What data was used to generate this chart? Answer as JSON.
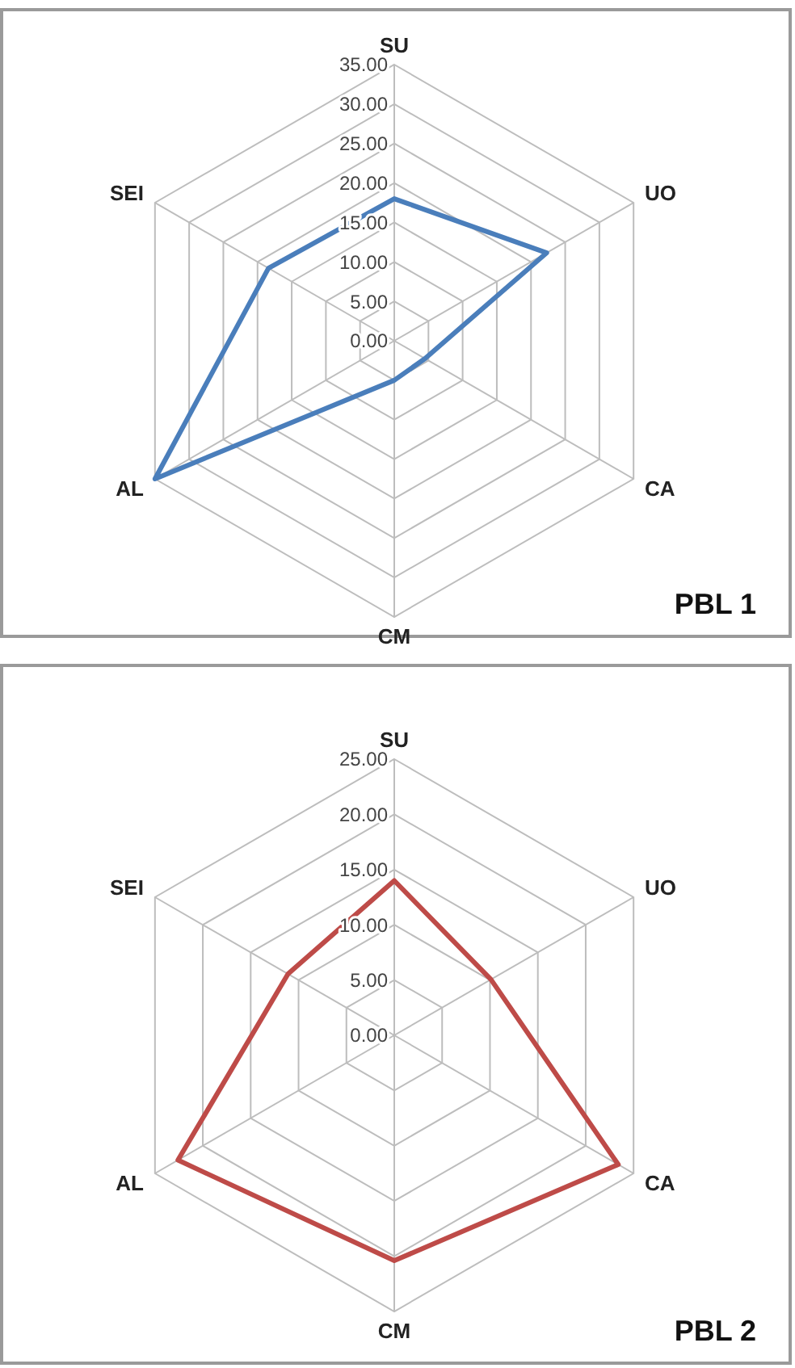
{
  "chart_data": [
    {
      "type": "radar",
      "categories": [
        "SU",
        "UO",
        "CA",
        "CM",
        "AL",
        "SEI"
      ],
      "series": [
        {
          "color": "#4a7ebb",
          "values": [
            18,
            22.3,
            4.5,
            5,
            35,
            18.4
          ]
        }
      ],
      "ylim": [
        0,
        35
      ],
      "yticks": [
        {
          "value": 0,
          "label": "0.00"
        },
        {
          "value": 5,
          "label": "5.00"
        },
        {
          "value": 10,
          "label": "10.00"
        },
        {
          "value": 15,
          "label": "15.00"
        },
        {
          "value": 20,
          "label": "20.00"
        },
        {
          "value": 25,
          "label": "25.00"
        },
        {
          "value": 30,
          "label": "30.00"
        },
        {
          "value": 35,
          "label": "35.00"
        }
      ],
      "grid": true,
      "annotations": [
        "PBL 1"
      ]
    },
    {
      "type": "radar",
      "categories": [
        "SU",
        "UO",
        "CA",
        "CM",
        "AL",
        "SEI"
      ],
      "series": [
        {
          "color": "#be4b48",
          "values": [
            14,
            10.1,
            23.4,
            20.4,
            22.6,
            11.1
          ]
        }
      ],
      "ylim": [
        0,
        25
      ],
      "yticks": [
        {
          "value": 0,
          "label": "0.00"
        },
        {
          "value": 5,
          "label": "5.00"
        },
        {
          "value": 10,
          "label": "10.00"
        },
        {
          "value": 15,
          "label": "15.00"
        },
        {
          "value": 20,
          "label": "20.00"
        },
        {
          "value": 25,
          "label": "25.00"
        }
      ],
      "grid": true,
      "annotations": [
        "PBL 2"
      ]
    }
  ]
}
